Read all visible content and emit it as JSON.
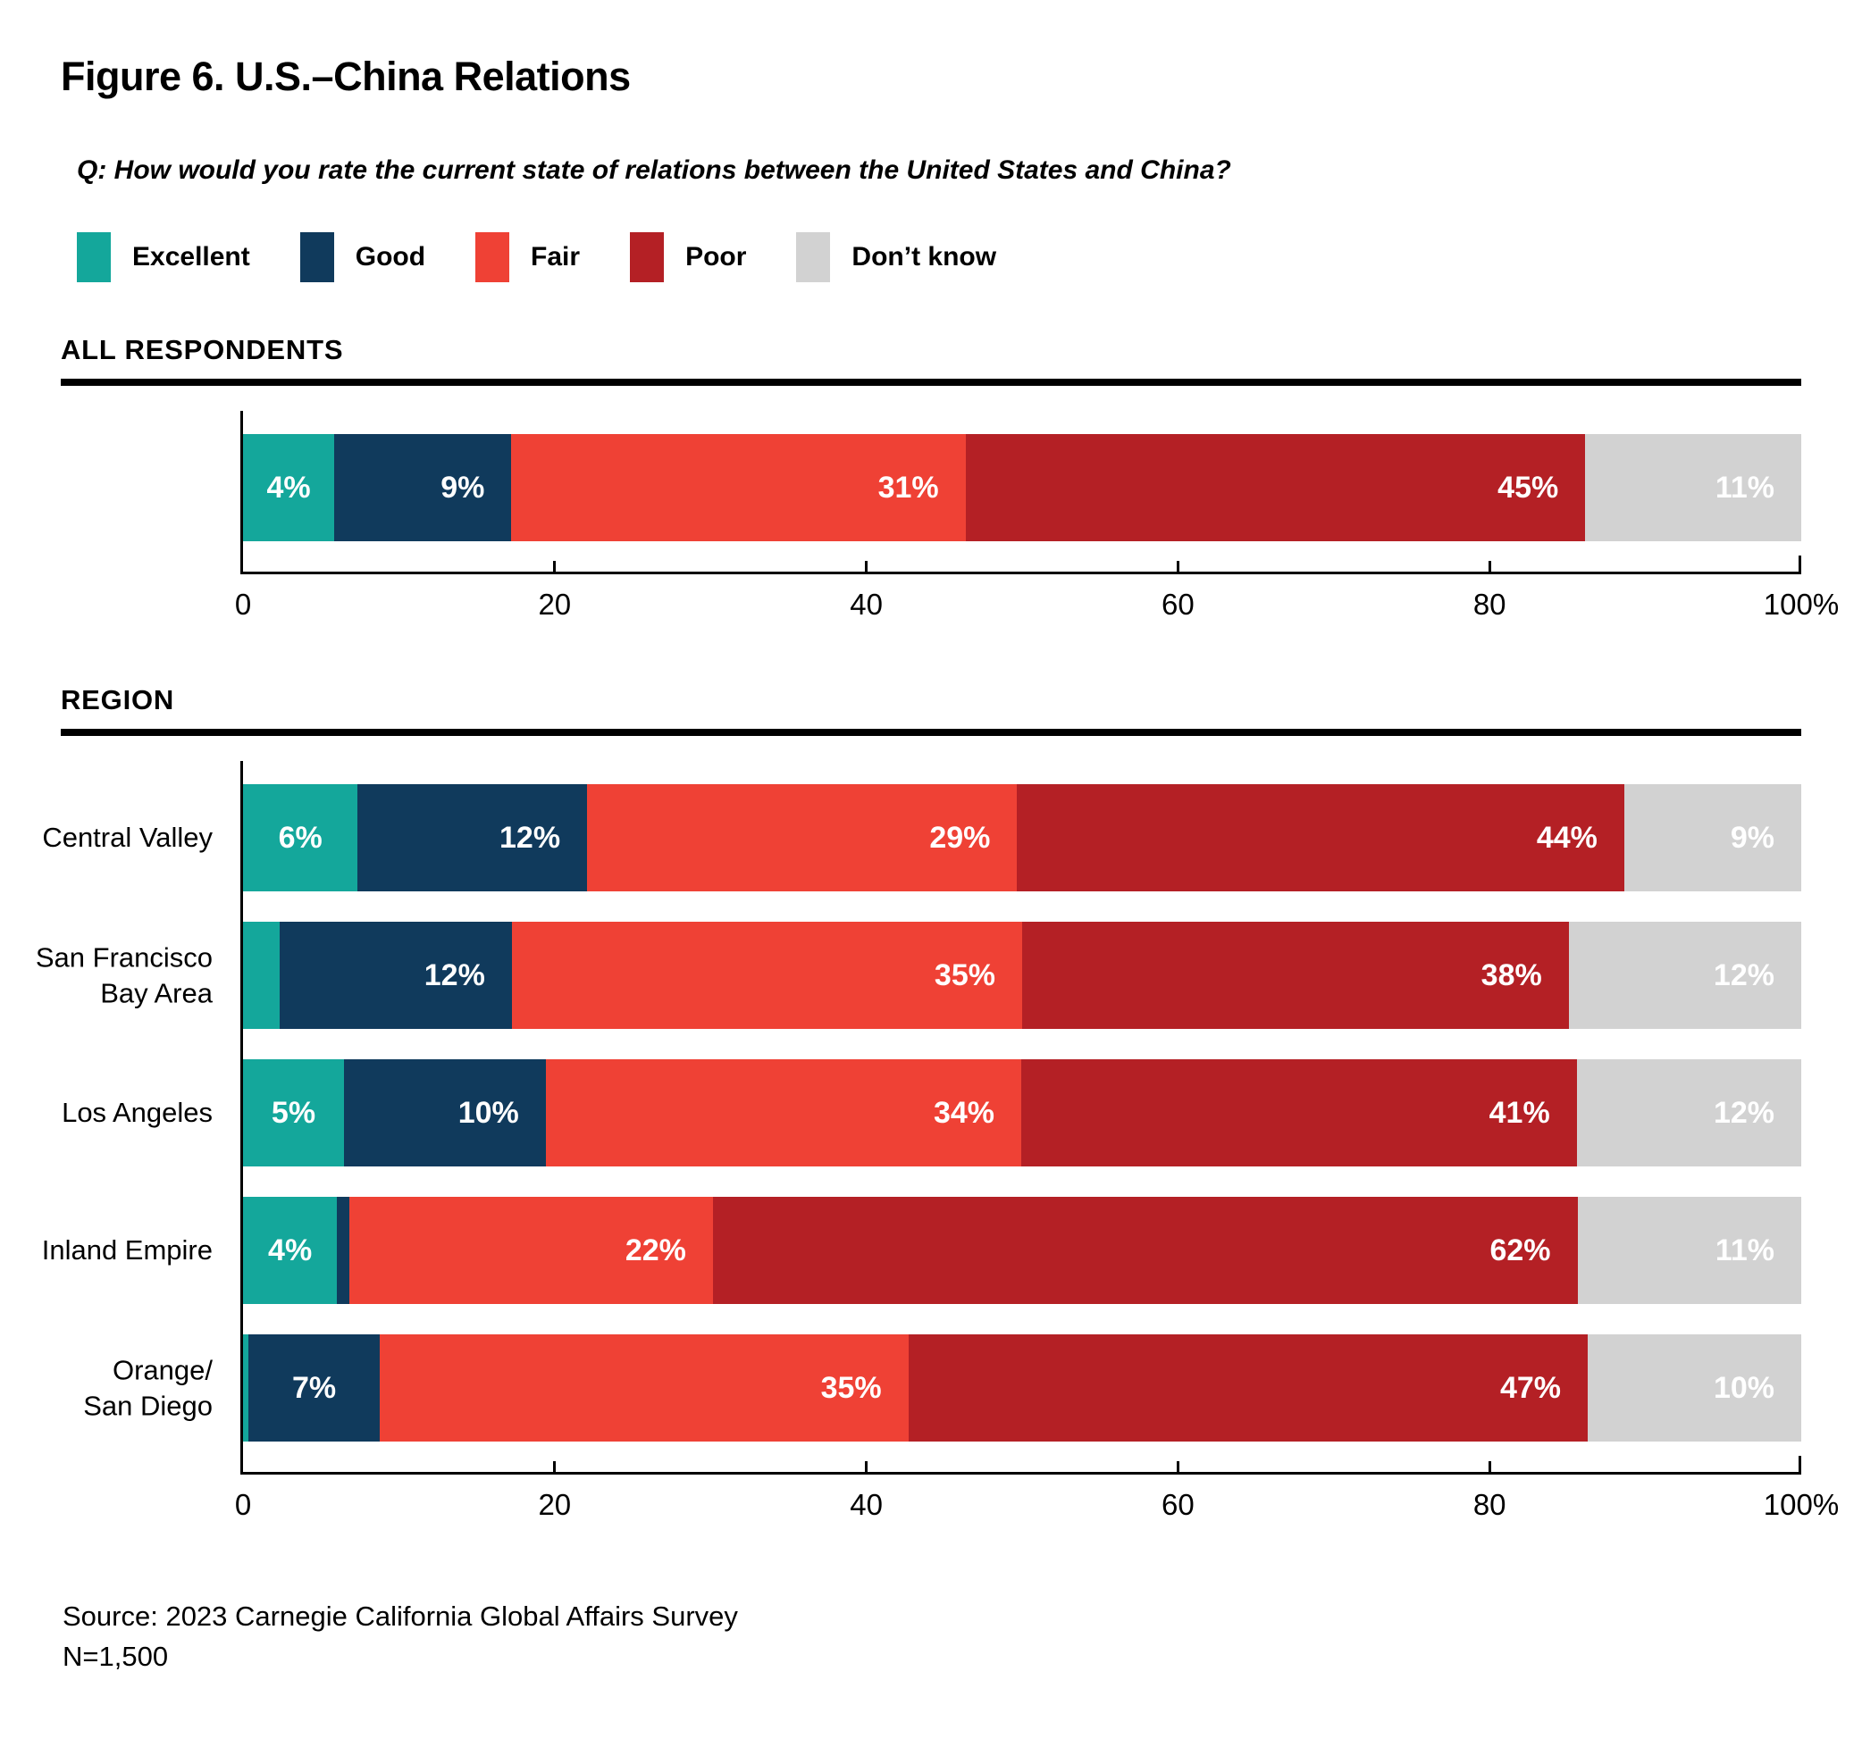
{
  "figure": {
    "title": "Figure 6. U.S.–China Relations",
    "question": "Q: How would you rate the current state of relations between the United States and China?",
    "source_line1": "Source: 2023 Carnegie California Global Affairs Survey",
    "source_line2": "N=1,500"
  },
  "chart_data": {
    "type": "bar",
    "orientation": "horizontal",
    "stacked": true,
    "unit": "percent",
    "axis": {
      "min": 0,
      "max": 100,
      "tick_values": [
        0,
        20,
        40,
        60,
        80,
        100
      ],
      "tick_labels": [
        "0",
        "20",
        "40",
        "60",
        "80",
        "100%"
      ]
    },
    "legend": [
      {
        "name": "Excellent",
        "color": "#14A79B"
      },
      {
        "name": "Good",
        "color": "#103A5C"
      },
      {
        "name": "Fair",
        "color": "#EF4135"
      },
      {
        "name": "Poor",
        "color": "#B42025"
      },
      {
        "name": "Don’t know",
        "color": "#D2D2D2"
      }
    ],
    "sections": [
      {
        "title": "ALL RESPONDENTS",
        "rows": [
          {
            "label_lines": [],
            "values": [
              4,
              9,
              31,
              45,
              11
            ],
            "display_labels": [
              "4%",
              "9%",
              "31%",
              "45%",
              "11%"
            ]
          }
        ]
      },
      {
        "title": "REGION",
        "rows": [
          {
            "label_lines": [
              "Central Valley"
            ],
            "values": [
              6,
              12,
              29,
              44,
              9
            ],
            "display_labels": [
              "6%",
              "12%",
              "29%",
              "44%",
              "9%"
            ]
          },
          {
            "label_lines": [
              "San Francisco",
              "Bay Area"
            ],
            "values": [
              3,
              12,
              35,
              38,
              12
            ],
            "display_labels": [
              null,
              "12%",
              "35%",
              "38%",
              "12%"
            ]
          },
          {
            "label_lines": [
              "Los Angeles"
            ],
            "values": [
              5,
              10,
              34,
              41,
              12
            ],
            "display_labels": [
              "5%",
              "10%",
              "34%",
              "41%",
              "12%"
            ]
          },
          {
            "label_lines": [
              "Inland Empire"
            ],
            "values": [
              4,
              1,
              22,
              62,
              11
            ],
            "display_labels": [
              "4%",
              null,
              "22%",
              "62%",
              "11%"
            ]
          },
          {
            "label_lines": [
              "Orange/",
              "San Diego"
            ],
            "values": [
              0.4,
              7,
              35,
              47,
              10
            ],
            "display_labels": [
              null,
              "7%",
              "35%",
              "47%",
              "10%"
            ]
          }
        ]
      }
    ]
  }
}
